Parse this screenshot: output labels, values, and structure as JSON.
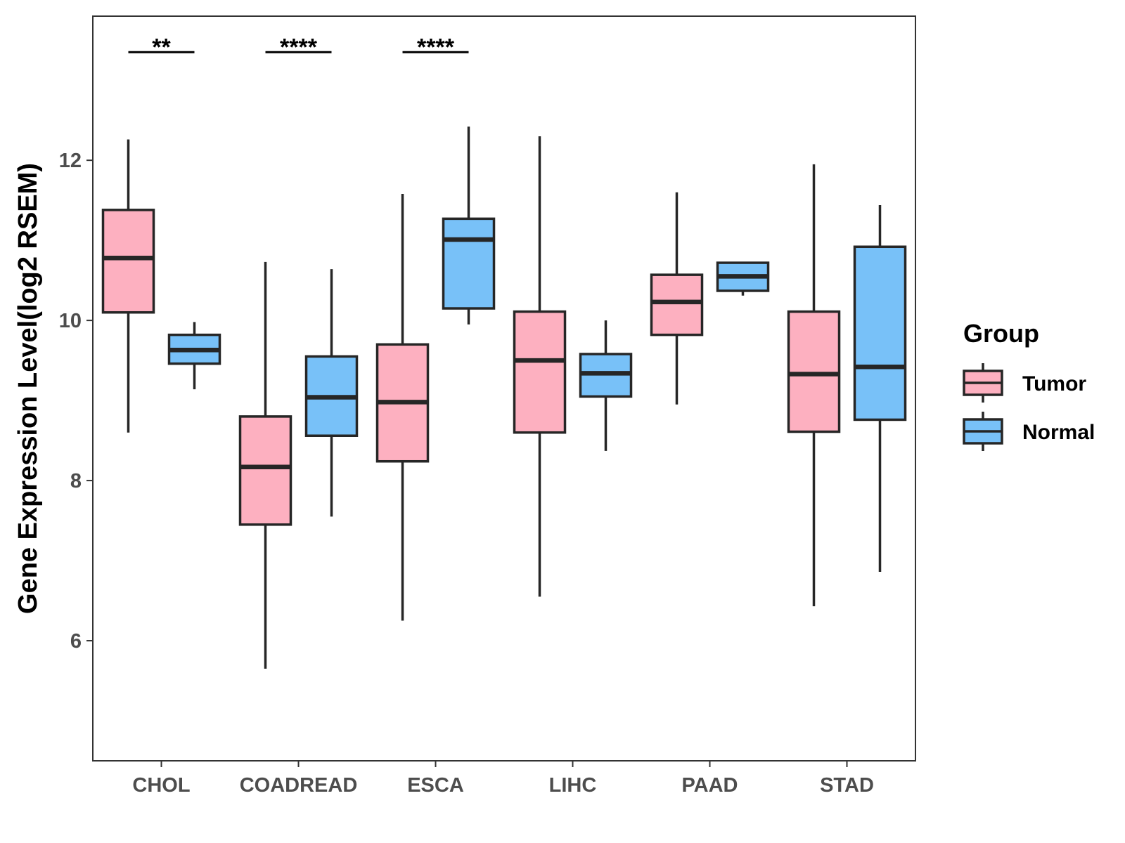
{
  "chart_data": {
    "type": "boxplot",
    "title": "",
    "xlabel": "",
    "ylabel": "Gene Expression Level(log2 RSEM)",
    "ylim": [
      4.5,
      13.8
    ],
    "yticks": [
      6,
      8,
      10,
      12
    ],
    "ytick_labels": [
      "6",
      "8",
      "10",
      "12"
    ],
    "categories": [
      "CHOL",
      "COADREAD",
      "ESCA",
      "LIHC",
      "PAAD",
      "STAD"
    ],
    "legend_title": "Group",
    "legend_position": "right",
    "series": [
      {
        "name": "Tumor",
        "color": "#FDB0C0",
        "boxes": [
          {
            "category": "CHOL",
            "min": 8.6,
            "q1": 10.1,
            "median": 10.78,
            "q3": 11.38,
            "max": 12.26
          },
          {
            "category": "COADREAD",
            "min": 5.65,
            "q1": 7.45,
            "median": 8.17,
            "q3": 8.8,
            "max": 10.73
          },
          {
            "category": "ESCA",
            "min": 6.25,
            "q1": 8.24,
            "median": 8.98,
            "q3": 9.7,
            "max": 11.58
          },
          {
            "category": "LIHC",
            "min": 6.55,
            "q1": 8.6,
            "median": 9.5,
            "q3": 10.11,
            "max": 12.3
          },
          {
            "category": "PAAD",
            "min": 8.95,
            "q1": 9.82,
            "median": 10.23,
            "q3": 10.57,
            "max": 11.6
          },
          {
            "category": "STAD",
            "min": 6.43,
            "q1": 8.61,
            "median": 9.33,
            "q3": 10.11,
            "max": 11.95
          }
        ]
      },
      {
        "name": "Normal",
        "color": "#78C1F8",
        "boxes": [
          {
            "category": "CHOL",
            "min": 9.14,
            "q1": 9.46,
            "median": 9.63,
            "q3": 9.82,
            "max": 9.98
          },
          {
            "category": "COADREAD",
            "min": 7.55,
            "q1": 8.56,
            "median": 9.04,
            "q3": 9.55,
            "max": 10.64
          },
          {
            "category": "ESCA",
            "min": 9.95,
            "q1": 10.15,
            "median": 11.01,
            "q3": 11.27,
            "max": 12.42
          },
          {
            "category": "LIHC",
            "min": 8.37,
            "q1": 9.05,
            "median": 9.34,
            "q3": 9.58,
            "max": 10.0
          },
          {
            "category": "PAAD",
            "min": 10.31,
            "q1": 10.37,
            "median": 10.55,
            "q3": 10.72,
            "max": 10.72
          },
          {
            "category": "STAD",
            "min": 6.86,
            "q1": 8.76,
            "median": 9.42,
            "q3": 10.92,
            "max": 11.44
          }
        ]
      }
    ],
    "significance": [
      {
        "category": "CHOL",
        "label": "**",
        "y": 13.35
      },
      {
        "category": "COADREAD",
        "label": "****",
        "y": 13.35
      },
      {
        "category": "ESCA",
        "label": "****",
        "y": 13.35
      }
    ]
  }
}
